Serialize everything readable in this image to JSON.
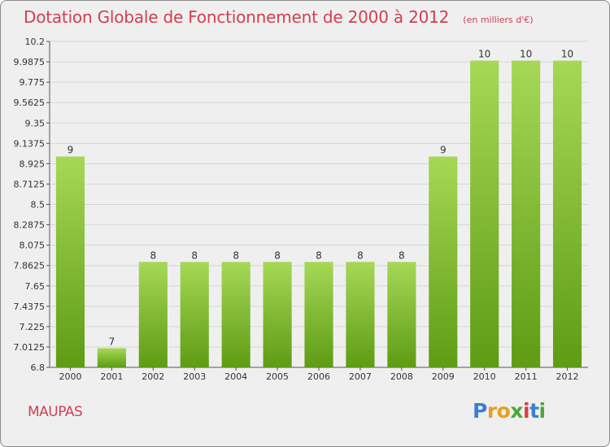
{
  "header": {
    "title": "Dotation Globale de Fonctionnement de 2000 à 2012",
    "unit": "(en milliers d'€)"
  },
  "footer": {
    "commune": "MAUPAS",
    "logo_text": "Proxiti"
  },
  "colors": {
    "title": "#d1404f",
    "bar_top": "#a6d856",
    "bar_bottom": "#5e9c14",
    "background": "#efefef"
  },
  "chart_data": {
    "type": "bar",
    "title": "Dotation Globale de Fonctionnement de 2000 à 2012",
    "subtitle": "(en milliers d'€)",
    "categories": [
      "2000",
      "2001",
      "2002",
      "2003",
      "2004",
      "2005",
      "2006",
      "2007",
      "2008",
      "2009",
      "2010",
      "2011",
      "2012"
    ],
    "values": [
      9,
      7,
      8,
      8,
      8,
      8,
      8,
      8,
      8,
      9,
      10,
      10,
      10
    ],
    "plotted_values": [
      9.0,
      7.0,
      7.9,
      7.9,
      7.9,
      7.9,
      7.9,
      7.9,
      7.9,
      9.0,
      10.0,
      10.0,
      10.0
    ],
    "data_labels": [
      "9",
      "7",
      "8",
      "8",
      "8",
      "8",
      "8",
      "8",
      "8",
      "9",
      "10",
      "10",
      "10"
    ],
    "y_ticks": [
      "10.2",
      "9.9875",
      "9.775",
      "9.5625",
      "9.35",
      "9.1375",
      "8.925",
      "8.7125",
      "8.5",
      "8.2875",
      "8.075",
      "7.8625",
      "7.65",
      "7.4375",
      "7.225",
      "7.0125",
      "6.8"
    ],
    "ylim": [
      6.8,
      10.2
    ],
    "xlabel": "",
    "ylabel": "",
    "grid": true,
    "legend": "none"
  }
}
